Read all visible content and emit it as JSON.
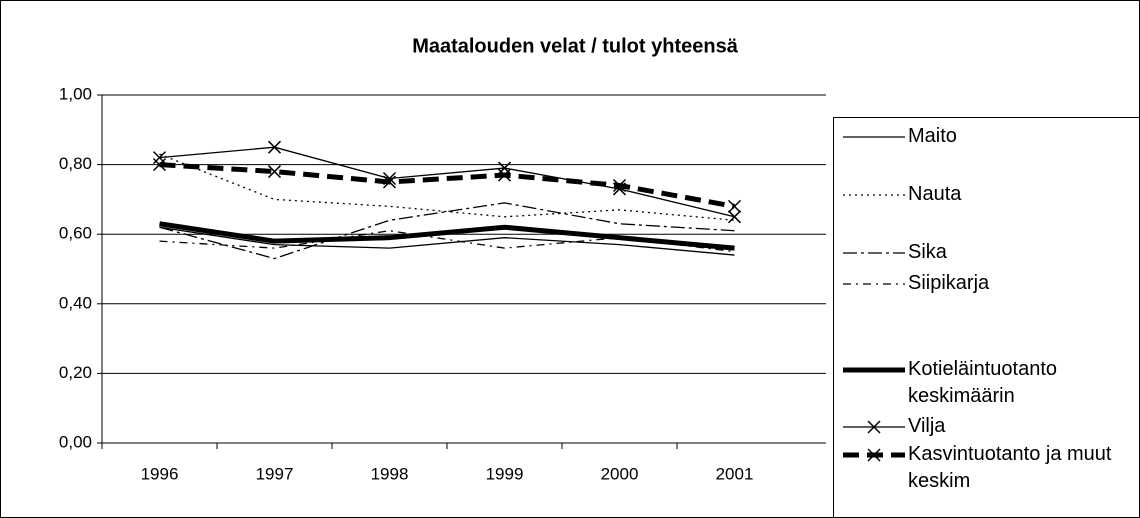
{
  "chart_data": {
    "type": "line",
    "title": "Maatalouden velat / tulot yhteensä",
    "categories": [
      "1996",
      "1997",
      "1998",
      "1999",
      "2000",
      "2001"
    ],
    "series": [
      {
        "name": "Maito",
        "color": "#000000",
        "values": [
          0.62,
          0.57,
          0.56,
          0.59,
          0.57,
          0.54
        ]
      },
      {
        "name": "Nauta",
        "color": "#000000",
        "values": [
          0.83,
          0.7,
          0.68,
          0.65,
          0.67,
          0.64
        ]
      },
      {
        "name": "Sika",
        "color": "#000000",
        "values": [
          0.62,
          0.53,
          0.64,
          0.69,
          0.63,
          0.61
        ]
      },
      {
        "name": "Siipikarja",
        "color": "#000000",
        "values": [
          0.58,
          0.56,
          0.61,
          0.56,
          0.59,
          0.55
        ]
      },
      {
        "name": "Kotieläintuotanto keskimäärin",
        "color": "#000000",
        "values": [
          0.63,
          0.58,
          0.59,
          0.62,
          0.59,
          0.56
        ]
      },
      {
        "name": "Vilja",
        "color": "#000000",
        "values": [
          0.82,
          0.85,
          0.76,
          0.79,
          0.73,
          0.65
        ]
      },
      {
        "name": "Kasvintuotanto ja muut keskim",
        "color": "#000000",
        "values": [
          0.8,
          0.78,
          0.75,
          0.77,
          0.74,
          0.68
        ]
      }
    ],
    "ylim": [
      0,
      1
    ],
    "yticks": [
      {
        "value": 0,
        "label": "0,00"
      },
      {
        "value": 0.2,
        "label": "0,20"
      },
      {
        "value": 0.4,
        "label": "0,40"
      },
      {
        "value": 0.6,
        "label": "0,60"
      },
      {
        "value": 0.8,
        "label": "0,80"
      },
      {
        "value": 1,
        "label": "1,00"
      }
    ],
    "grid": true,
    "legend": "right"
  }
}
